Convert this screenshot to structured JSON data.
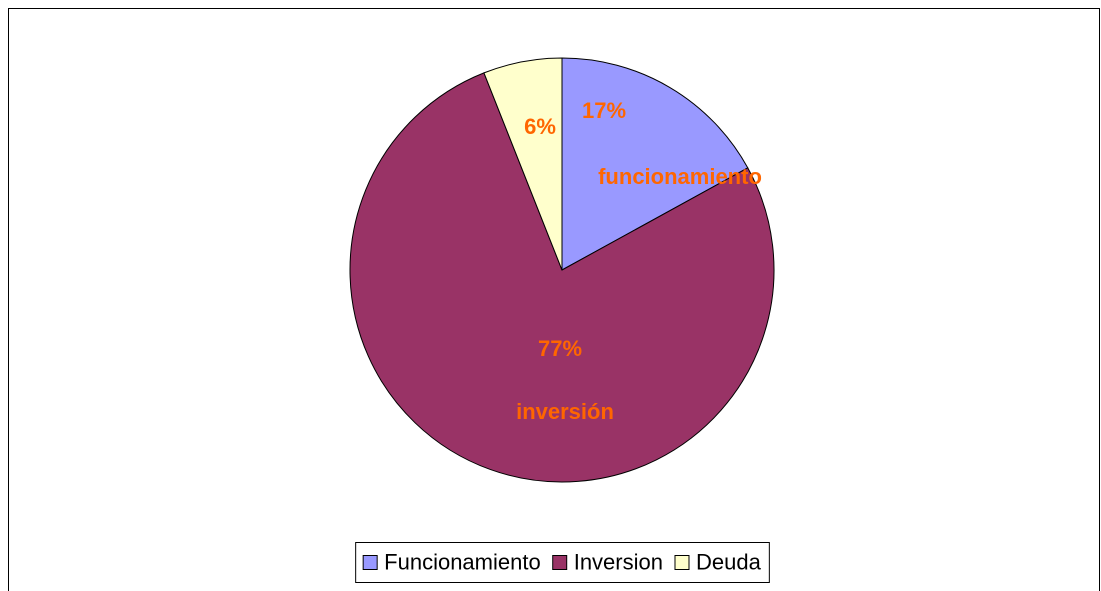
{
  "chart_data": {
    "type": "pie",
    "categories": [
      "Funcionamiento",
      "Inversion",
      "Deuda"
    ],
    "values": [
      17,
      77,
      6
    ],
    "value_labels": [
      "17%",
      "77%",
      "6%"
    ],
    "colors": [
      "#9999ff",
      "#993366",
      "#ffffcc"
    ],
    "annotations": [
      "funcionamiento",
      "inversión"
    ],
    "label_color": "#ff6600",
    "legend": "bottom"
  }
}
